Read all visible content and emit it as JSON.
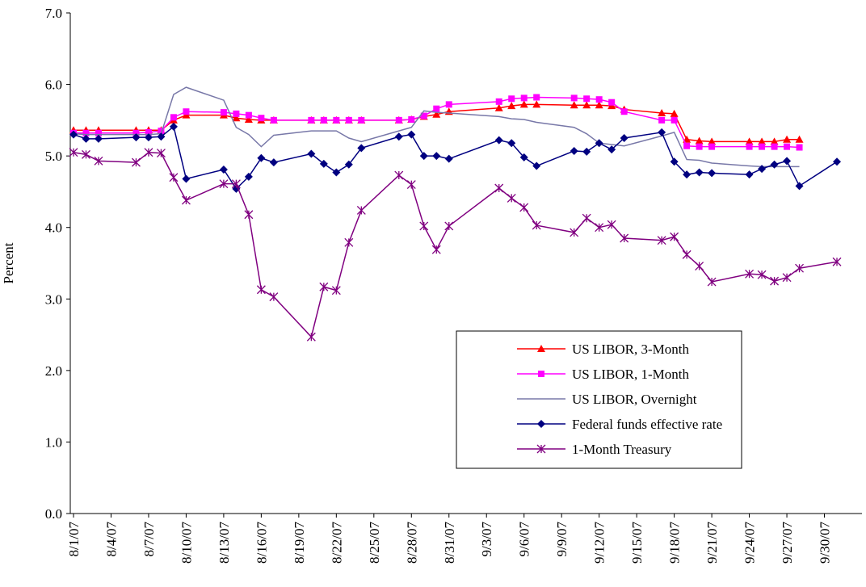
{
  "chart_data": {
    "type": "line",
    "y_label": "Percent",
    "x": [
      "8/1/07",
      "8/2/07",
      "8/3/07",
      "8/6/07",
      "8/7/07",
      "8/8/07",
      "8/9/07",
      "8/10/07",
      "8/13/07",
      "8/14/07",
      "8/15/07",
      "8/16/07",
      "8/17/07",
      "8/20/07",
      "8/21/07",
      "8/22/07",
      "8/23/07",
      "8/24/07",
      "8/27/07",
      "8/28/07",
      "8/29/07",
      "8/30/07",
      "8/31/07",
      "9/4/07",
      "9/5/07",
      "9/6/07",
      "9/7/07",
      "9/10/07",
      "9/11/07",
      "9/12/07",
      "9/13/07",
      "9/14/07",
      "9/17/07",
      "9/18/07",
      "9/19/07",
      "9/20/07",
      "9/21/07",
      "9/24/07",
      "9/25/07",
      "9/26/07",
      "9/27/07",
      "9/28/07",
      "10/1/07"
    ],
    "xlim": [
      "8/1/07",
      "10/3/07"
    ],
    "xticks": [
      "8/1/07",
      "8/4/07",
      "8/7/07",
      "8/10/07",
      "8/13/07",
      "8/16/07",
      "8/19/07",
      "8/22/07",
      "8/25/07",
      "8/28/07",
      "8/31/07",
      "9/3/07",
      "9/6/07",
      "9/9/07",
      "9/12/07",
      "9/15/07",
      "9/18/07",
      "9/21/07",
      "9/24/07",
      "9/27/07",
      "9/30/07"
    ],
    "ylim": [
      0,
      7
    ],
    "yticks": [
      {
        "value": 0,
        "label": "0.0"
      },
      {
        "value": 1,
        "label": "1.0"
      },
      {
        "value": 2,
        "label": "2.0"
      },
      {
        "value": 3,
        "label": "3.0"
      },
      {
        "value": 4,
        "label": "4.0"
      },
      {
        "value": 5,
        "label": "5.0"
      },
      {
        "value": 6,
        "label": "6.0"
      },
      {
        "value": 7,
        "label": "7.0"
      }
    ],
    "grid": false,
    "legend": "lower right",
    "series": [
      {
        "name": "US LIBOR, 3-Month",
        "color": "#ff0000",
        "marker": "triangle",
        "values": [
          5.36,
          5.36,
          5.36,
          5.36,
          5.36,
          5.36,
          5.5,
          5.57,
          5.57,
          5.53,
          5.51,
          5.5,
          5.5,
          5.5,
          5.5,
          5.5,
          5.5,
          5.5,
          5.5,
          5.51,
          5.55,
          5.58,
          5.62,
          5.67,
          5.7,
          5.72,
          5.72,
          5.71,
          5.71,
          5.71,
          5.7,
          5.65,
          5.6,
          5.59,
          5.23,
          5.21,
          5.2,
          5.2,
          5.2,
          5.2,
          5.23,
          5.23,
          null
        ]
      },
      {
        "name": "US LIBOR, 1-Month",
        "color": "#ff00ff",
        "marker": "square",
        "values": [
          5.32,
          5.32,
          5.32,
          5.32,
          5.33,
          5.35,
          5.54,
          5.62,
          5.61,
          5.59,
          5.57,
          5.53,
          5.5,
          5.5,
          5.5,
          5.5,
          5.5,
          5.5,
          5.5,
          5.51,
          5.56,
          5.66,
          5.72,
          5.76,
          5.8,
          5.81,
          5.82,
          5.81,
          5.8,
          5.79,
          5.75,
          5.62,
          5.5,
          5.5,
          5.14,
          5.13,
          5.13,
          5.13,
          5.13,
          5.13,
          5.13,
          5.12,
          null
        ]
      },
      {
        "name": "US LIBOR, Overnight",
        "color": "#7878a8",
        "marker": "none",
        "values": [
          5.31,
          5.3,
          5.3,
          5.3,
          5.3,
          5.31,
          5.86,
          5.96,
          5.78,
          5.4,
          5.3,
          5.13,
          5.29,
          5.35,
          5.35,
          5.35,
          5.25,
          5.2,
          5.35,
          5.4,
          5.63,
          5.61,
          5.6,
          5.55,
          5.52,
          5.51,
          5.47,
          5.4,
          5.31,
          5.18,
          5.16,
          5.14,
          5.28,
          5.33,
          4.95,
          4.94,
          4.9,
          4.86,
          4.85,
          4.85,
          4.85,
          4.85,
          null
        ]
      },
      {
        "name": "Federal funds effective rate",
        "color": "#000080",
        "marker": "diamond",
        "values": [
          5.3,
          5.24,
          5.24,
          5.26,
          5.26,
          5.27,
          5.41,
          4.68,
          4.81,
          4.54,
          4.71,
          4.97,
          4.91,
          5.03,
          4.89,
          4.77,
          4.88,
          5.11,
          5.27,
          5.3,
          5.0,
          5.0,
          4.96,
          5.22,
          5.18,
          4.98,
          4.86,
          5.07,
          5.06,
          5.18,
          5.09,
          5.25,
          5.33,
          4.92,
          4.74,
          4.77,
          4.76,
          4.74,
          4.82,
          4.88,
          4.93,
          4.58,
          4.92
        ]
      },
      {
        "name": "1-Month Treasury",
        "color": "#800080",
        "marker": "asterisk",
        "values": [
          5.05,
          5.02,
          4.93,
          4.91,
          5.05,
          5.04,
          4.7,
          4.38,
          4.61,
          4.61,
          4.18,
          3.13,
          3.03,
          2.47,
          3.17,
          3.12,
          3.79,
          4.24,
          4.73,
          4.6,
          4.02,
          3.69,
          4.02,
          4.55,
          4.41,
          4.28,
          4.03,
          3.93,
          4.13,
          4.0,
          4.04,
          3.85,
          3.82,
          3.87,
          3.62,
          3.46,
          3.24,
          3.35,
          3.34,
          3.25,
          3.3,
          3.43,
          3.52
        ]
      }
    ]
  }
}
